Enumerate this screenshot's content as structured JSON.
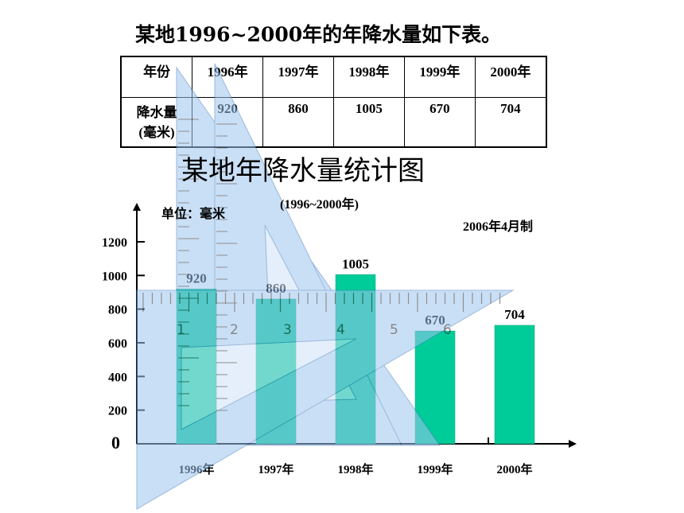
{
  "heading": "某地1996~2000年的年降水量如下表。",
  "table": {
    "row_headers": [
      "年份",
      "降水量\n(毫米)"
    ],
    "years": [
      "1996年",
      "1997年",
      "1998年",
      "1999年",
      "2000年"
    ],
    "values": [
      "920",
      "860",
      "1005",
      "670",
      "704"
    ]
  },
  "chart_data": {
    "type": "bar",
    "title": "某地年降水量统计图",
    "subtitle": "(1996~2000年)",
    "unit": "单位：毫米",
    "note": "2006年4月制",
    "categories": [
      "1996年",
      "1997年",
      "1998年",
      "1999年",
      "2000年"
    ],
    "values": [
      920,
      860,
      1005,
      670,
      704
    ],
    "value_labels": [
      "920",
      "860",
      "1005",
      "670",
      "704"
    ],
    "yticks": [
      0,
      200,
      400,
      600,
      800,
      1000,
      1200
    ],
    "ytick_labels": [
      "0",
      "200",
      "400",
      "600",
      "800",
      "1000",
      "1200"
    ],
    "ylim": [
      0,
      1400
    ],
    "bar_color": "#00cc99"
  },
  "overlay": {
    "ruler_labels": [
      "1",
      "2",
      "3",
      "4",
      "5",
      "6"
    ],
    "color": "#9ec5ef"
  }
}
